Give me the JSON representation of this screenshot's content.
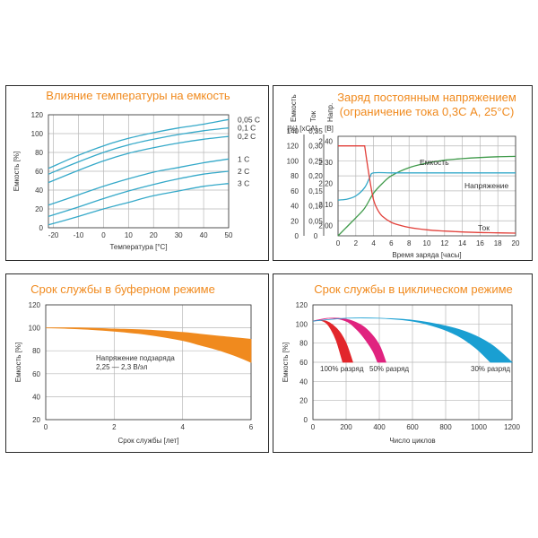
{
  "chart_data": [
    {
      "type": "line",
      "title": "Влияние температуры на емкость",
      "xlabel": "Температура [°C]",
      "ylabel": "Емкость [%]",
      "xlim": [
        -22,
        50
      ],
      "ylim": [
        0,
        120
      ],
      "xticks": [
        "-20",
        "-10",
        "0",
        "10",
        "20",
        "30",
        "40",
        "50"
      ],
      "yticks": [
        "0",
        "20",
        "40",
        "60",
        "80",
        "100",
        "120"
      ],
      "grid": true,
      "line_color": "#35a9c9",
      "series": [
        {
          "name": "0,05 С",
          "x": [
            -22,
            -10,
            0,
            10,
            20,
            30,
            40,
            50
          ],
          "y": [
            63,
            77,
            87,
            95,
            101,
            106,
            110,
            115
          ]
        },
        {
          "name": "0,1 С",
          "x": [
            -22,
            -10,
            0,
            10,
            20,
            30,
            40,
            50
          ],
          "y": [
            57,
            70,
            80,
            88,
            94,
            99,
            103,
            106
          ]
        },
        {
          "name": "0,2 С",
          "x": [
            -22,
            -10,
            0,
            10,
            20,
            30,
            40,
            50
          ],
          "y": [
            48,
            61,
            71,
            79,
            85,
            90,
            94,
            97
          ]
        },
        {
          "name": "1 С",
          "x": [
            -22,
            -10,
            0,
            10,
            20,
            30,
            40,
            50
          ],
          "y": [
            24,
            35,
            44,
            52,
            59,
            64,
            69,
            73
          ]
        },
        {
          "name": "2 С",
          "x": [
            -22,
            -10,
            0,
            10,
            20,
            30,
            40,
            50
          ],
          "y": [
            12,
            22,
            31,
            39,
            46,
            52,
            57,
            60
          ]
        },
        {
          "name": "3 С",
          "x": [
            -22,
            -10,
            0,
            10,
            20,
            30,
            40,
            50
          ],
          "y": [
            3,
            12,
            20,
            27,
            34,
            39,
            44,
            47
          ]
        }
      ]
    },
    {
      "type": "line",
      "title_lines": [
        "Заряд постоянным напряжением",
        "(ограничение тока 0,3С А, 25°С)"
      ],
      "xlabel": "Время заряда [часы]",
      "xlim": [
        0,
        20
      ],
      "xticks": [
        "0",
        "2",
        "4",
        "6",
        "8",
        "10",
        "12",
        "14",
        "16",
        "18",
        "20"
      ],
      "axes": [
        {
          "header": "Емкость",
          "unit": "[%]",
          "ticks": [
            "0",
            "20",
            "40",
            "60",
            "80",
            "100",
            "120",
            "140"
          ],
          "range": [
            0,
            140
          ]
        },
        {
          "header": "Ток",
          "unit": "[хСА]",
          "ticks": [
            "0",
            "0,05",
            "0,10",
            "0,15",
            "0,20",
            "0,25",
            "0,30",
            "0,35"
          ],
          "range": [
            0,
            0.35
          ]
        },
        {
          "header": "Напр.",
          "unit": "[В]",
          "ticks": [
            "2,00",
            "2,10",
            "2,20",
            "2,30",
            "2,40"
          ],
          "range": [
            1.95,
            2.45
          ]
        }
      ],
      "grid": true,
      "series": [
        {
          "name": "Емкость",
          "color": "#3f9a4a",
          "axis": 0,
          "x": [
            0,
            1,
            2,
            3,
            4,
            5,
            6,
            8,
            10,
            12,
            14,
            16,
            18,
            20
          ],
          "y": [
            0,
            12,
            24,
            37,
            57,
            70,
            80,
            91,
            97,
            101,
            103,
            104.5,
            105.5,
            106
          ]
        },
        {
          "name": "Напряжение",
          "color": "#35a9c9",
          "axis": 2,
          "x": [
            0,
            1,
            2,
            3,
            3.6,
            4,
            6,
            8,
            10,
            12,
            14,
            16,
            18,
            20
          ],
          "y": [
            2.12,
            2.125,
            2.14,
            2.18,
            2.23,
            2.25,
            2.25,
            2.25,
            2.25,
            2.25,
            2.25,
            2.25,
            2.25,
            2.25
          ]
        },
        {
          "name": "Ток",
          "color": "#e2403a",
          "axis": 1,
          "x": [
            0,
            3,
            3.5,
            4,
            4.5,
            5,
            6,
            7,
            8,
            10,
            12,
            14,
            16,
            18,
            20
          ],
          "y": [
            0.3,
            0.3,
            0.2,
            0.12,
            0.085,
            0.065,
            0.045,
            0.035,
            0.028,
            0.02,
            0.016,
            0.013,
            0.011,
            0.01,
            0.009
          ]
        }
      ]
    },
    {
      "type": "area",
      "title": "Срок службы в буферном режиме",
      "xlabel": "Срок службы [лет]",
      "ylabel": "Емкость [%]",
      "xlim": [
        0,
        6
      ],
      "ylim": [
        20,
        120
      ],
      "xticks": [
        "0",
        "2",
        "4",
        "6"
      ],
      "yticks": [
        "20",
        "40",
        "60",
        "80",
        "100",
        "120"
      ],
      "grid": true,
      "band_color": "#f08a1e",
      "annotation": [
        "Напряжение подзаряда",
        "2,25 — 2,3 В/эл"
      ],
      "band": {
        "x": [
          0,
          1,
          2,
          3,
          4,
          4.5,
          5,
          5.5,
          6
        ],
        "upper": [
          100,
          100,
          99,
          98,
          96,
          94.5,
          93,
          91.5,
          90
        ],
        "lower": [
          100,
          99,
          97,
          94,
          89,
          85,
          81,
          76,
          70
        ]
      }
    },
    {
      "type": "area",
      "title": "Срок службы в циклическом режиме",
      "xlabel": "Число циклов",
      "ylabel": "Емкость [%]",
      "xlim": [
        0,
        1200
      ],
      "ylim": [
        0,
        120
      ],
      "xticks": [
        "0",
        "200",
        "400",
        "600",
        "800",
        "1000",
        "1200"
      ],
      "yticks": [
        "0",
        "20",
        "40",
        "60",
        "80",
        "100",
        "120"
      ],
      "grid": true,
      "series": [
        {
          "name": "100% разряд",
          "color": "#e2262b",
          "x": [
            0,
            40,
            80,
            120,
            160,
            200,
            240
          ],
          "upper": [
            103,
            104,
            103,
            99,
            92,
            80,
            60
          ],
          "x2": [
            0,
            40,
            80,
            110,
            140,
            160,
            180
          ],
          "lower": [
            103,
            104,
            101,
            94,
            83,
            72,
            60
          ]
        },
        {
          "name": "50% разряд",
          "color": "#e0237f",
          "x": [
            0,
            100,
            200,
            280,
            340,
            400,
            440
          ],
          "upper": [
            103,
            106,
            105,
            100,
            92,
            78,
            60
          ],
          "x2": [
            0,
            100,
            200,
            260,
            310,
            360,
            390
          ],
          "lower": [
            103,
            106,
            103,
            95,
            85,
            72,
            60
          ]
        },
        {
          "name": "30% разряд",
          "color": "#1a9fd2",
          "x": [
            0,
            200,
            400,
            600,
            800,
            950,
            1080,
            1200
          ],
          "upper": [
            103,
            106,
            106,
            104,
            98,
            90,
            78,
            60
          ],
          "x2": [
            0,
            200,
            400,
            600,
            760,
            880,
            980,
            1070
          ],
          "lower": [
            103,
            106,
            106,
            103,
            96,
            87,
            75,
            60
          ]
        }
      ]
    }
  ]
}
